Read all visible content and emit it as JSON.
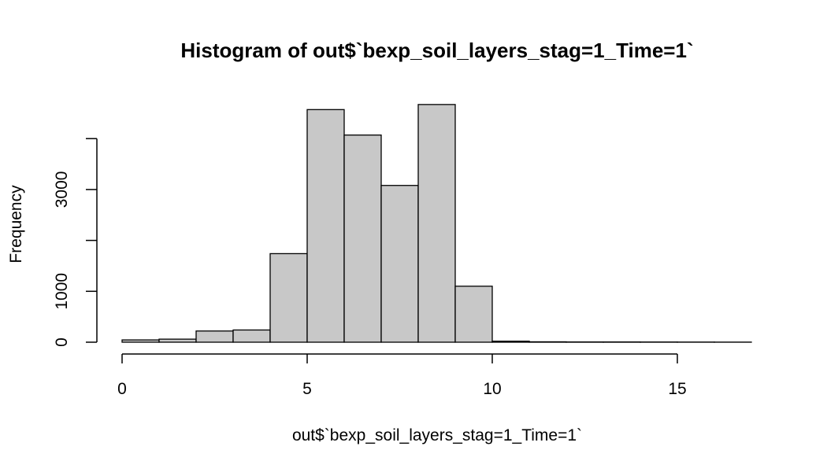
{
  "chart_data": {
    "type": "bar",
    "title": "Histogram of out$`bexp_soil_layers_stag=1_Time=1`",
    "xlabel": "out$`bexp_soil_layers_stag=1_Time=1`",
    "ylabel": "Frequency",
    "bin_edges": [
      0,
      1,
      2,
      3,
      4,
      5,
      6,
      7,
      8,
      9,
      10,
      11,
      12,
      13,
      14,
      15,
      16,
      17
    ],
    "categories": [
      "0-1",
      "1-2",
      "2-3",
      "3-4",
      "4-5",
      "5-6",
      "6-7",
      "7-8",
      "8-9",
      "9-10",
      "10-11",
      "11-12",
      "12-13",
      "13-14",
      "14-15",
      "15-16",
      "16-17"
    ],
    "values": [
      45,
      60,
      220,
      240,
      1740,
      4570,
      4070,
      3080,
      4670,
      1100,
      20,
      8,
      5,
      5,
      4,
      3,
      2
    ],
    "xlim": [
      0,
      17
    ],
    "ylim": [
      0,
      4800
    ],
    "x_ticks": [
      0,
      5,
      10,
      15
    ],
    "y_ticks": [
      0,
      1000,
      2000,
      3000,
      4000
    ],
    "y_tick_labels": [
      "0",
      "1000",
      "",
      "3000",
      ""
    ],
    "bar_color": "#c8c8c8",
    "grid": false,
    "legend": "none"
  }
}
